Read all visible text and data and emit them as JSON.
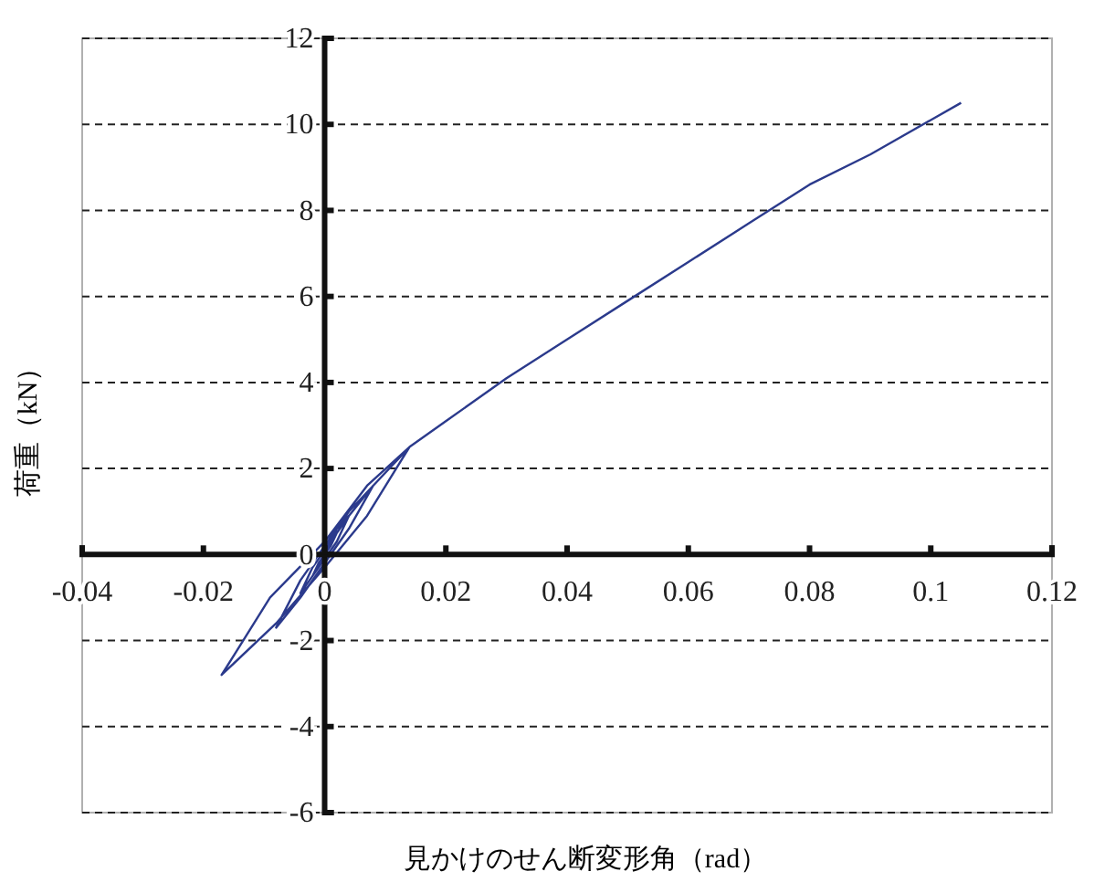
{
  "chart_data": {
    "type": "line",
    "xlabel": "見かけのせん断変形角（rad）",
    "ylabel": "荷重（kN）",
    "xlim": [
      -0.04,
      0.12
    ],
    "ylim": [
      -6,
      12
    ],
    "xticks": [
      -0.04,
      -0.02,
      0,
      0.02,
      0.04,
      0.06,
      0.08,
      0.1,
      0.12
    ],
    "yticks": [
      -6,
      -4,
      -2,
      0,
      2,
      4,
      6,
      8,
      10,
      12
    ],
    "grid": "y",
    "line_style": "solid",
    "series": [
      {
        "color": "#2b3a8c",
        "x": [
          0,
          0.001,
          0.002,
          0.001,
          0,
          -0.001,
          -0.002,
          -0.001,
          0,
          0.001,
          0.002,
          0.004,
          0.002,
          0,
          -0.002,
          -0.004,
          -0.002,
          0,
          0.002,
          0.004,
          0.002,
          0,
          -0.002,
          -0.004,
          -0.002,
          0,
          0.002,
          0.004,
          0.008,
          0.004,
          0,
          -0.004,
          -0.008,
          -0.004,
          0,
          0.004,
          0.008,
          0.004,
          0,
          -0.004,
          -0.008,
          -0.004,
          0,
          0.004,
          0.008,
          0.014,
          0.007,
          0,
          -0.008,
          -0.017,
          -0.009,
          0,
          0.007,
          0.014,
          0.02,
          0.03,
          0.04,
          0.05,
          0.06,
          0.07,
          0.08,
          0.09,
          0.1,
          0.105
        ],
        "values": [
          0,
          0.3,
          0.5,
          0.2,
          0,
          -0.3,
          -0.5,
          -0.2,
          0,
          0.3,
          0.5,
          0.9,
          0.3,
          -0.1,
          -0.5,
          -0.9,
          -0.3,
          0.1,
          0.5,
          0.9,
          0.3,
          -0.1,
          -0.5,
          -0.9,
          -0.3,
          0.1,
          0.6,
          0.9,
          1.6,
          0.6,
          -0.2,
          -1.0,
          -1.7,
          -0.6,
          0.2,
          1.0,
          1.6,
          0.6,
          -0.2,
          -1.0,
          -1.7,
          -0.6,
          0.2,
          1.0,
          1.6,
          2.5,
          0.9,
          -0.3,
          -1.6,
          -2.8,
          -1.0,
          0.3,
          1.6,
          2.5,
          3.1,
          4.1,
          5.0,
          5.9,
          6.8,
          7.7,
          8.6,
          9.3,
          10.1,
          10.5
        ]
      }
    ]
  }
}
